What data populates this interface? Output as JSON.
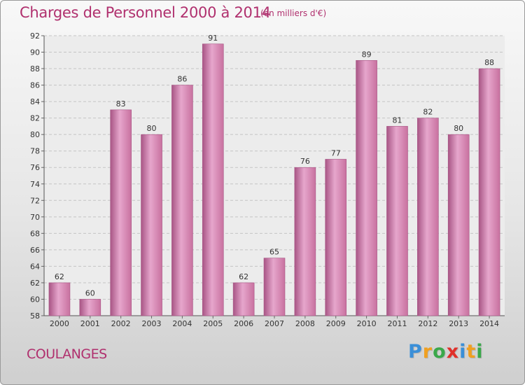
{
  "title": "Charges de Personnel 2000 à 2014",
  "subtitle": "(en milliers d'€)",
  "city": "COULANGES",
  "logo": {
    "text": "Proxiti",
    "letters": [
      "P",
      "r",
      "o",
      "x",
      "i",
      "t",
      "i"
    ],
    "colors": [
      "#3a8fd8",
      "#f0a020",
      "#3aa84a",
      "#e0302a",
      "#3a8fd8",
      "#f0a020",
      "#3aa84a"
    ]
  },
  "colors": {
    "bar": "#c8719f",
    "bar_light": "#e6a6cc",
    "bar_dark": "#a85585",
    "text": "#b0306e"
  },
  "chart_data": {
    "type": "bar",
    "title": "Charges de Personnel 2000 à 2014",
    "subtitle": "(en milliers d'€)",
    "categories": [
      "2000",
      "2001",
      "2002",
      "2003",
      "2004",
      "2005",
      "2006",
      "2007",
      "2008",
      "2009",
      "2010",
      "2011",
      "2012",
      "2013",
      "2014"
    ],
    "values": [
      62,
      60,
      83,
      80,
      86,
      91,
      62,
      65,
      76,
      77,
      89,
      81,
      82,
      80,
      88
    ],
    "ylim": [
      58,
      92
    ],
    "yticks": [
      58,
      60,
      62,
      64,
      66,
      68,
      70,
      72,
      74,
      76,
      78,
      80,
      82,
      84,
      86,
      88,
      90,
      92
    ],
    "grid": true,
    "xlabel": "",
    "ylabel": ""
  }
}
